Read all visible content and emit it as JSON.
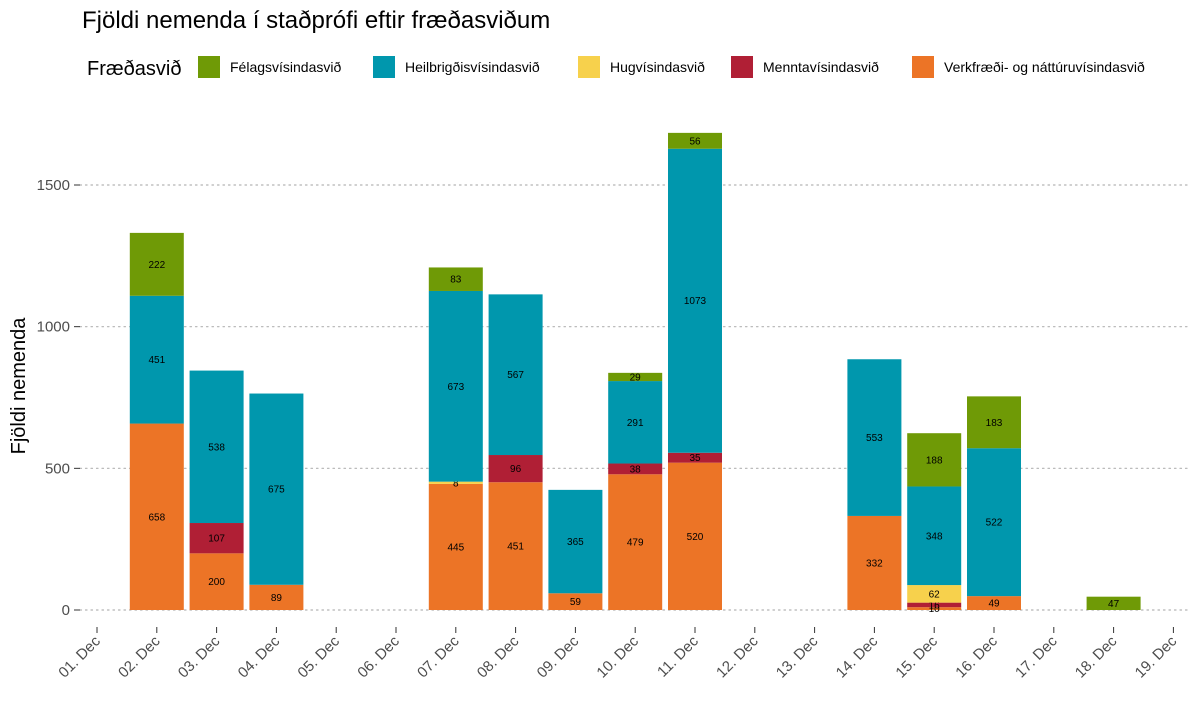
{
  "chart_data": {
    "type": "bar",
    "stacked": true,
    "title": "Fjöldi nemenda í staðprófi eftir fræðasviðum",
    "xlabel": "",
    "ylabel": "Fjöldi nemenda",
    "ylim": [
      -60,
      1750
    ],
    "yticks": [
      0,
      500,
      1000,
      1500
    ],
    "grid": "horizontal dotted",
    "legend": {
      "position": "top",
      "title": "Fræðasvið"
    },
    "categories": [
      "01. Dec",
      "02. Dec",
      "03. Dec",
      "04. Dec",
      "05. Dec",
      "06. Dec",
      "07. Dec",
      "08. Dec",
      "09. Dec",
      "10. Dec",
      "11. Dec",
      "12. Dec",
      "13. Dec",
      "14. Dec",
      "15. Dec",
      "16. Dec",
      "17. Dec",
      "18. Dec",
      "19. Dec"
    ],
    "series": [
      {
        "name": "Verkfræði- og náttúruvísindasvið",
        "color": "#EC7426",
        "values": [
          0,
          658,
          200,
          89,
          0,
          0,
          445,
          451,
          59,
          479,
          520,
          0,
          0,
          332,
          10,
          49,
          0,
          0,
          0
        ]
      },
      {
        "name": "Menntavísindasvið",
        "color": "#B01F35",
        "values": [
          0,
          0,
          107,
          0,
          0,
          0,
          0,
          96,
          0,
          38,
          35,
          0,
          0,
          0,
          16,
          0,
          0,
          0,
          0
        ]
      },
      {
        "name": "Hugvísindasvið",
        "color": "#F7D14C",
        "values": [
          0,
          0,
          0,
          0,
          0,
          0,
          8,
          0,
          0,
          0,
          0,
          0,
          0,
          0,
          62,
          0,
          0,
          0,
          0
        ]
      },
      {
        "name": "Heilbrigðisvísindasvið",
        "color": "#0097AD",
        "values": [
          0,
          451,
          538,
          675,
          0,
          0,
          673,
          567,
          365,
          291,
          1073,
          0,
          0,
          553,
          348,
          522,
          0,
          0,
          0
        ]
      },
      {
        "name": "Félagsvísindasvið",
        "color": "#6F9A06",
        "values": [
          0,
          222,
          0,
          0,
          0,
          0,
          83,
          0,
          0,
          29,
          56,
          0,
          0,
          0,
          188,
          183,
          0,
          47,
          0
        ]
      }
    ]
  }
}
